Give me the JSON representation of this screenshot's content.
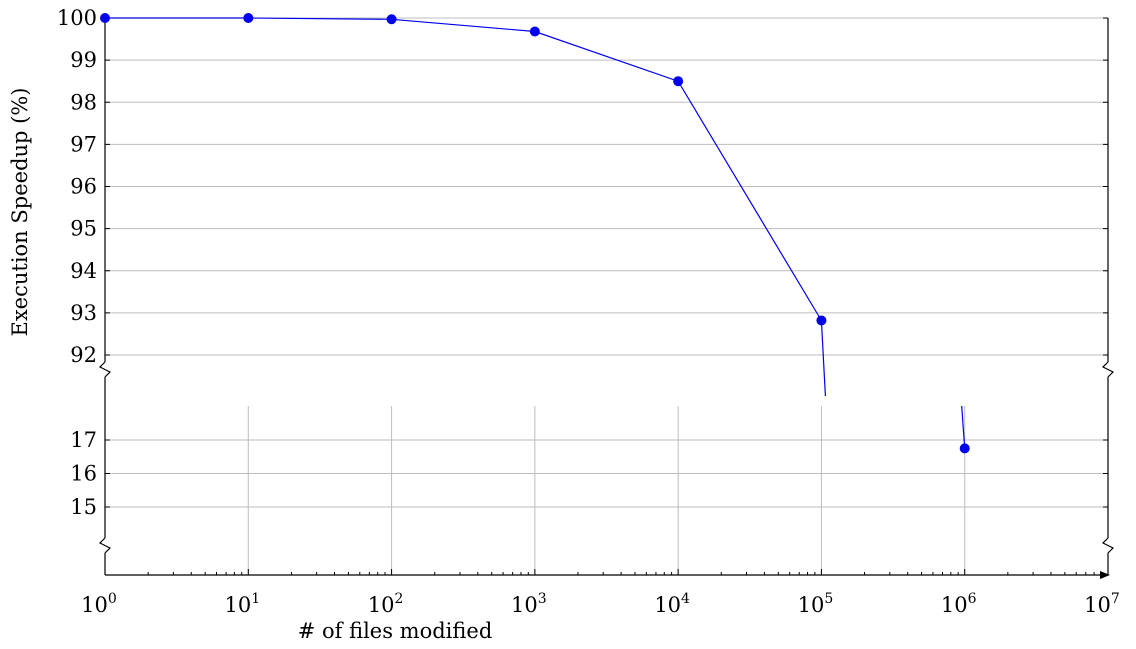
{
  "chart_data": {
    "type": "line",
    "xlabel": "# of files modified",
    "ylabel": "Execution Speedup (%)",
    "x_scale": "log",
    "xlim": [
      1,
      10000000
    ],
    "x_ticks": [
      {
        "base": "10",
        "exp": "0"
      },
      {
        "base": "10",
        "exp": "1"
      },
      {
        "base": "10",
        "exp": "2"
      },
      {
        "base": "10",
        "exp": "3"
      },
      {
        "base": "10",
        "exp": "4"
      },
      {
        "base": "10",
        "exp": "5"
      },
      {
        "base": "10",
        "exp": "6"
      },
      {
        "base": "10",
        "exp": "7"
      }
    ],
    "broken_y_axis": true,
    "ylim_upper": [
      91.6,
      100
    ],
    "ylim_lower": [
      13,
      18
    ],
    "y_ticks_upper": [
      "92",
      "93",
      "94",
      "95",
      "96",
      "97",
      "98",
      "99",
      "100"
    ],
    "y_ticks_lower": [
      "15",
      "16",
      "17"
    ],
    "grid": true,
    "color": "#0000ee",
    "series": [
      {
        "x": [
          1,
          10,
          100,
          1000,
          10000,
          100000,
          1000000
        ],
        "y": [
          100,
          100,
          99.97,
          99.68,
          98.5,
          92.82,
          16.75
        ]
      }
    ]
  }
}
